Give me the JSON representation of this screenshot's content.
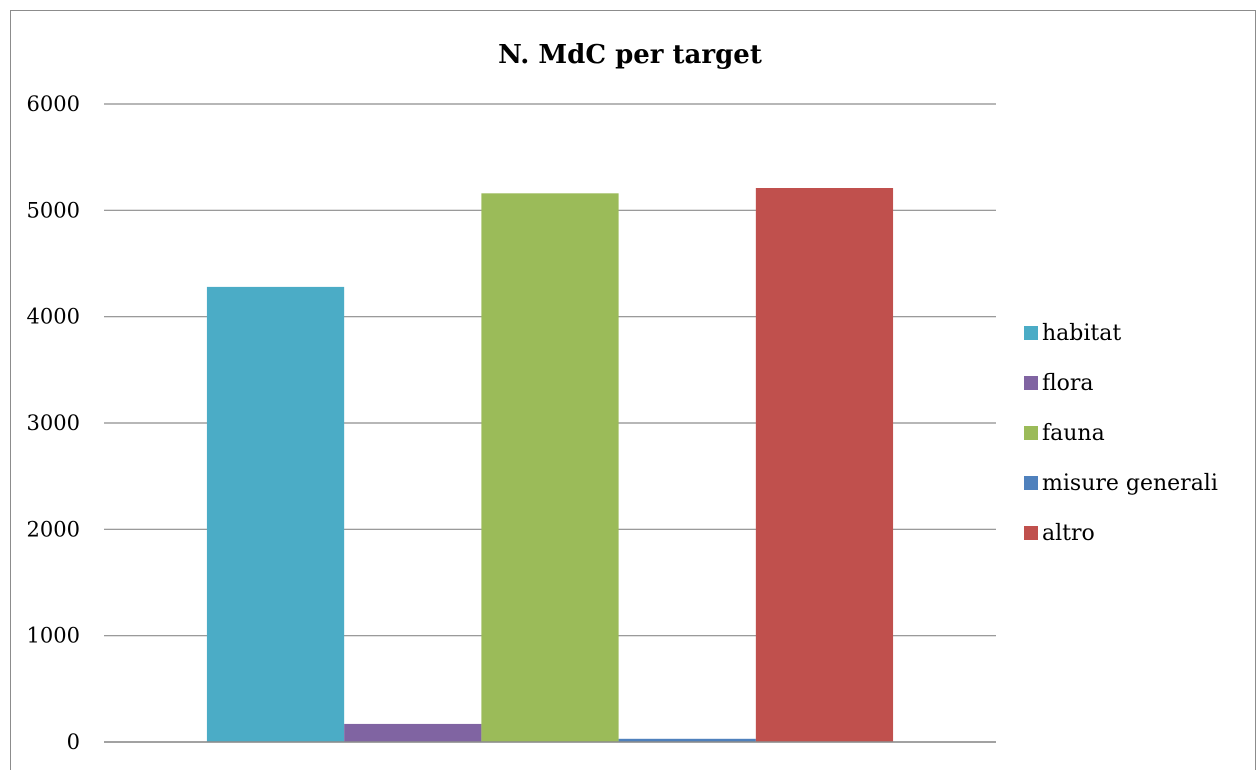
{
  "chart_data": {
    "type": "bar",
    "title": "N. MdC per target",
    "xlabel": "",
    "ylabel": "",
    "ylim": [
      0,
      6000
    ],
    "yticks": [
      "0",
      "1000",
      "2000",
      "3000",
      "4000",
      "5000",
      "6000"
    ],
    "categories": [
      ""
    ],
    "grid": true,
    "legend_position": "right",
    "series": [
      {
        "name": "habitat",
        "values": [
          4280
        ],
        "color": "#4bacc6"
      },
      {
        "name": "flora",
        "values": [
          170
        ],
        "color": "#8064a2"
      },
      {
        "name": "fauna",
        "values": [
          5160
        ],
        "color": "#9bbb59"
      },
      {
        "name": "misure generali",
        "values": [
          30
        ],
        "color": "#4f81bd"
      },
      {
        "name": "altro",
        "values": [
          5210
        ],
        "color": "#c0504d"
      }
    ]
  }
}
